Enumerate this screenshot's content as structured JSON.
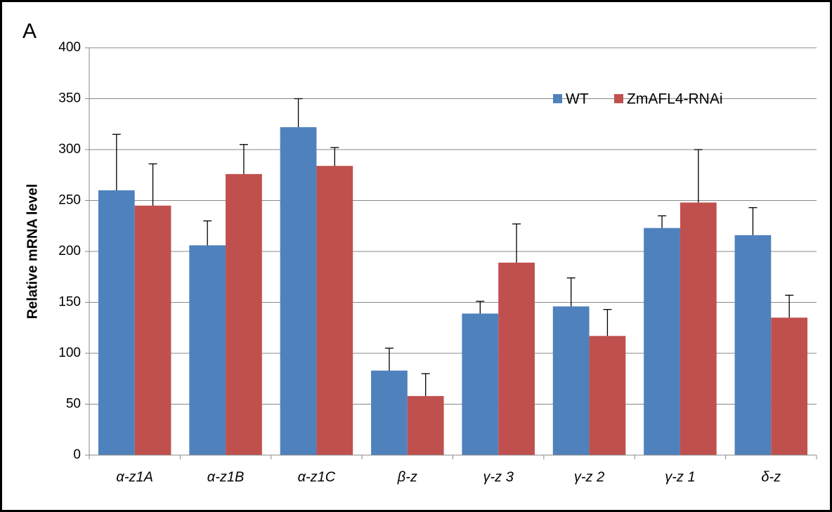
{
  "chart_data": {
    "type": "bar",
    "panel_label": "A",
    "y_label": "Relative mRNA level",
    "categories": [
      "α-z1A",
      "α-z1B",
      "α-z1C",
      "β-z",
      "γ-z 3",
      "γ-z 2",
      "γ-z 1",
      "δ-z"
    ],
    "series": [
      {
        "name": "WT",
        "color": "#4f81bd",
        "values": [
          260,
          206,
          322,
          83,
          139,
          146,
          223,
          216
        ],
        "errors": [
          55,
          24,
          28,
          22,
          12,
          28,
          12,
          27
        ]
      },
      {
        "name": "ZmAFL4-RNAi",
        "color": "#c0504d",
        "values": [
          245,
          276,
          284,
          58,
          189,
          117,
          248,
          135
        ],
        "errors": [
          41,
          29,
          18,
          22,
          38,
          26,
          52,
          22
        ]
      }
    ],
    "ylim": [
      0,
      400
    ],
    "yticks": [
      0,
      50,
      100,
      150,
      200,
      250,
      300,
      350,
      400
    ],
    "grid": true
  }
}
